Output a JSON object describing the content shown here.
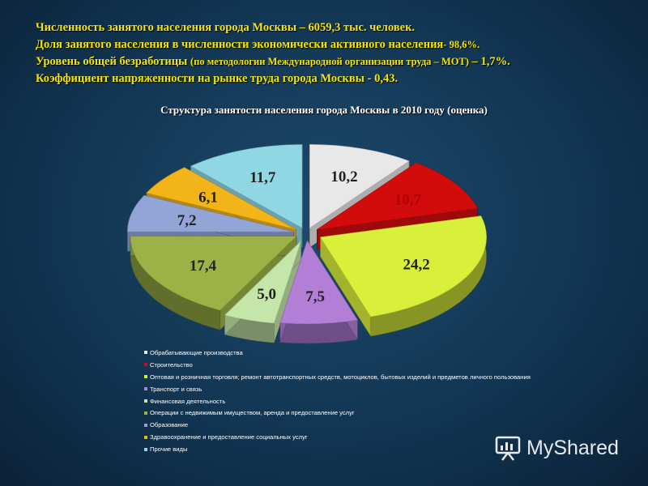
{
  "header": {
    "line1": "Численность занятого населения города Москвы – 6059,3 тыс. человек.",
    "line2_main": "Доля занятого населения в численности экономически активного населения",
    "line2_value": "- 98,6%.",
    "line3_main": "Уровень общей безработицы",
    "line3_note": "(по методологии Международной организации труда – МОТ)",
    "line3_value": "– 1,7%.",
    "line4": "Коэффициент напряженности на рынке труда города Москвы - 0,43."
  },
  "chart_data": {
    "type": "pie",
    "title": "Структура занятости населения города Москвы в 2010 году (оценка)",
    "legend_position": "bottom",
    "slices": [
      {
        "label": "Обрабатывающие производства",
        "value": 10.2,
        "display": "10,2",
        "color": "#e8e8e8"
      },
      {
        "label": "Строительство",
        "value": 10.7,
        "display": "10,7",
        "color": "#d20c0c"
      },
      {
        "label": "Оптовая и розничная торговля; ремонт автотранспортных средств, мотоциклов, бытовых изделий и предметов личного пользования",
        "value": 24.2,
        "display": "24,2",
        "color": "#d9f03a"
      },
      {
        "label": "Транспорт и связь",
        "value": 7.5,
        "display": "7,5",
        "color": "#b27ed6"
      },
      {
        "label": "Финансовая деятельность",
        "value": 5.0,
        "display": "5,0",
        "color": "#c4e6a9"
      },
      {
        "label": "Операции с недвижимым имуществом, аренда и предоставление услуг",
        "value": 17.4,
        "display": "17,4",
        "color": "#9cb247"
      },
      {
        "label": "Образование",
        "value": 7.2,
        "display": "7,2",
        "color": "#93a4d6"
      },
      {
        "label": "Здравоохранение и предоставление социальных услуг",
        "value": 6.1,
        "display": "6,1",
        "color": "#f2b417"
      },
      {
        "label": "Прочие виды",
        "value": 11.7,
        "display": "11,7",
        "color": "#8fd7e3"
      }
    ]
  },
  "brand": {
    "name": "MyShared",
    "icon": "presentation-board-icon"
  }
}
